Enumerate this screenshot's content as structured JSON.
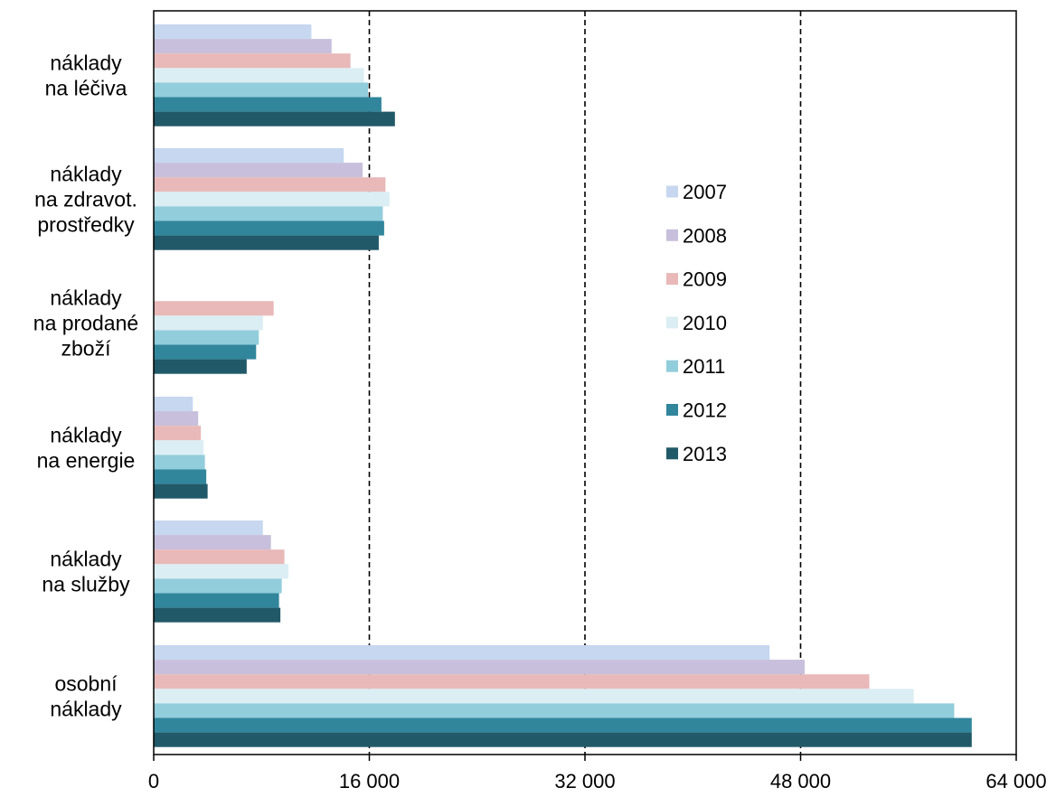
{
  "chart_data": {
    "type": "bar",
    "orientation": "horizontal",
    "categories": [
      [
        "náklady",
        "na léčiva"
      ],
      [
        "náklady",
        "na zdravot.",
        "prostředky"
      ],
      [
        "náklady",
        "na prodané",
        "zboží"
      ],
      [
        "náklady",
        "na energie"
      ],
      [
        "náklady",
        "na služby"
      ],
      [
        "osobní",
        "náklady"
      ]
    ],
    "series": [
      {
        "name": "2007",
        "color": "#c6d7ef",
        "values": [
          11700,
          14100,
          null,
          2900,
          8100,
          45700
        ]
      },
      {
        "name": "2008",
        "color": "#c7bfdb",
        "values": [
          13200,
          15500,
          null,
          3300,
          8700,
          48300
        ]
      },
      {
        "name": "2009",
        "color": "#e8b9b8",
        "values": [
          14600,
          17200,
          8900,
          3500,
          9700,
          53100
        ]
      },
      {
        "name": "2010",
        "color": "#dbeef4",
        "values": [
          15600,
          17500,
          8100,
          3700,
          10000,
          56400
        ]
      },
      {
        "name": "2011",
        "color": "#92cddb",
        "values": [
          15900,
          17000,
          7800,
          3800,
          9500,
          59400
        ]
      },
      {
        "name": "2012",
        "color": "#31869c",
        "values": [
          16900,
          17100,
          7600,
          3900,
          9300,
          60700
        ]
      },
      {
        "name": "2013",
        "color": "#215968",
        "values": [
          17900,
          16700,
          6900,
          4000,
          9400,
          60700
        ]
      }
    ],
    "xlim": [
      0,
      64000
    ],
    "xticks": [
      0,
      16000,
      32000,
      48000,
      64000
    ],
    "xtick_labels": [
      "0",
      "16 000",
      "32 000",
      "48 000",
      "64 000"
    ],
    "grid": "vertical dashed at 16 000, 32 000, 48 000",
    "legend_position": "right-center",
    "title": "",
    "xlabel": "",
    "ylabel": ""
  }
}
